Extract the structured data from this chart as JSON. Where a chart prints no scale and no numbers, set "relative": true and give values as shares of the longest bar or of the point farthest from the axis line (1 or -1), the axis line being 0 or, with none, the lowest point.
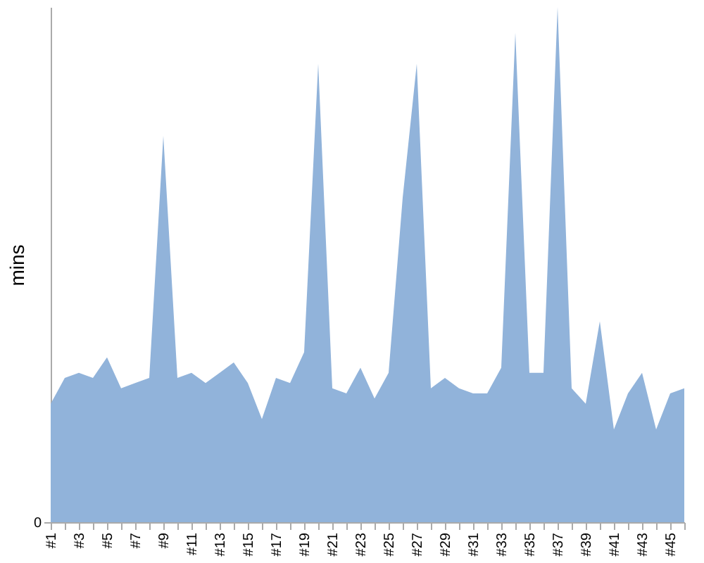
{
  "chart_data": {
    "type": "area",
    "ylabel": "mins",
    "relative": true,
    "annotations": [
      "0"
    ],
    "categories": [
      "#1",
      null,
      "#3",
      null,
      "#5",
      null,
      "#7",
      null,
      "#9",
      null,
      "#11",
      null,
      "#13",
      null,
      "#15",
      null,
      "#17",
      null,
      "#19",
      null,
      "#21",
      null,
      "#23",
      null,
      "#25",
      null,
      "#27",
      null,
      "#29",
      null,
      "#31",
      null,
      "#33",
      null,
      "#35",
      null,
      "#37",
      null,
      "#39",
      null,
      "#41",
      null,
      "#43",
      null,
      "#45",
      null
    ],
    "series": [
      {
        "color": "#91b3da",
        "values": [
          0.23,
          0.28,
          0.29,
          0.28,
          0.32,
          0.26,
          0.27,
          0.28,
          0.75,
          0.28,
          0.29,
          0.27,
          0.29,
          0.31,
          0.27,
          0.2,
          0.28,
          0.27,
          0.33,
          0.89,
          0.26,
          0.25,
          0.3,
          0.24,
          0.29,
          0.63,
          0.89,
          0.26,
          0.28,
          0.26,
          0.25,
          0.25,
          0.3,
          0.95,
          0.29,
          0.29,
          1,
          0.26,
          0.23,
          0.39,
          0.18,
          0.25,
          0.29,
          0.18,
          0.25,
          0.26
        ]
      }
    ]
  }
}
